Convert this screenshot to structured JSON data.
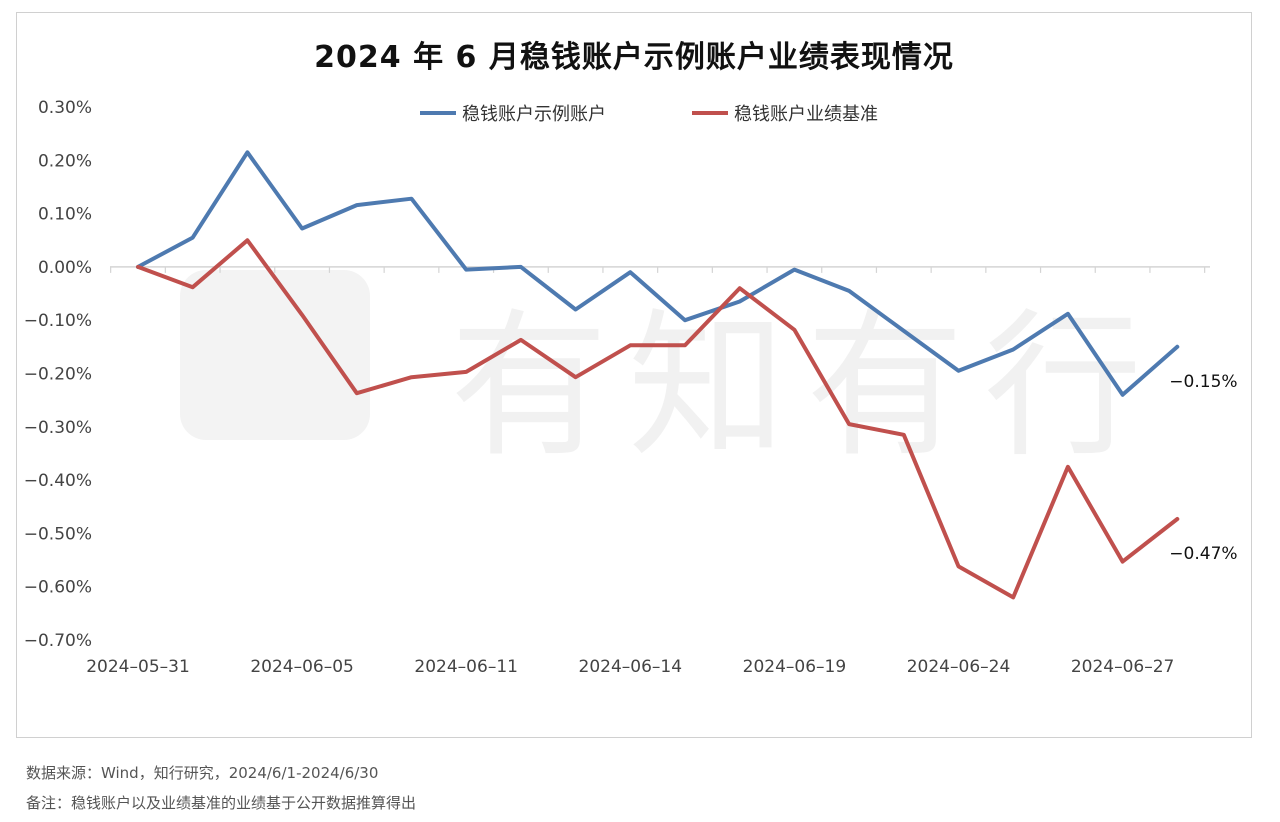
{
  "chart_data": {
    "type": "line",
    "title": "2024 年 6 月稳钱账户示例账户业绩表现情况",
    "x": [
      "2024-05-31",
      "2024-06-03",
      "2024-06-04",
      "2024-06-05",
      "2024-06-06",
      "2024-06-07",
      "2024-06-11",
      "2024-06-12",
      "2024-06-13",
      "2024-06-14",
      "2024-06-17",
      "2024-06-18",
      "2024-06-19",
      "2024-06-20",
      "2024-06-21",
      "2024-06-24",
      "2024-06-25",
      "2024-06-26",
      "2024-06-27",
      "2024-06-28"
    ],
    "x_tick_labels": [
      "2024-05-31",
      "2024-06-05",
      "2024-06-11",
      "2024-06-14",
      "2024-06-19",
      "2024-06-24",
      "2024-06-27"
    ],
    "series": [
      {
        "name": "稳钱账户示例账户",
        "color": "#4e7ab0",
        "values": [
          0.0,
          0.055,
          0.215,
          0.072,
          0.116,
          0.128,
          -0.005,
          0.0,
          -0.08,
          -0.01,
          -0.1,
          -0.065,
          -0.005,
          -0.045,
          -0.12,
          -0.195,
          -0.155,
          -0.088,
          -0.24,
          -0.15
        ]
      },
      {
        "name": "稳钱账户业绩基准",
        "color": "#c0504d",
        "values": [
          0.0,
          -0.038,
          0.05,
          -0.09,
          -0.237,
          -0.207,
          -0.197,
          -0.137,
          -0.207,
          -0.147,
          -0.147,
          -0.04,
          -0.118,
          -0.295,
          -0.315,
          -0.562,
          -0.62,
          -0.375,
          -0.553,
          -0.473
        ]
      }
    ],
    "end_labels": [
      "-0.15%",
      "-0.47%"
    ],
    "y_ticks": [
      "0.30%",
      "0.20%",
      "0.10%",
      "0.00%",
      "-0.10%",
      "-0.20%",
      "-0.30%",
      "-0.40%",
      "-0.50%",
      "-0.60%",
      "-0.70%"
    ],
    "ylim": [
      -0.7,
      0.3
    ],
    "y_unit": "%",
    "grid": false,
    "legend_position": "top-center"
  },
  "watermark": {
    "text": "有知有行",
    "color": "#f1f1f1"
  },
  "footnotes": {
    "source": "数据来源：Wind，知行研究，2024/6/1-2024/6/30",
    "note": "备注：稳钱账户以及业绩基准的业绩基于公开数据推算得出"
  }
}
